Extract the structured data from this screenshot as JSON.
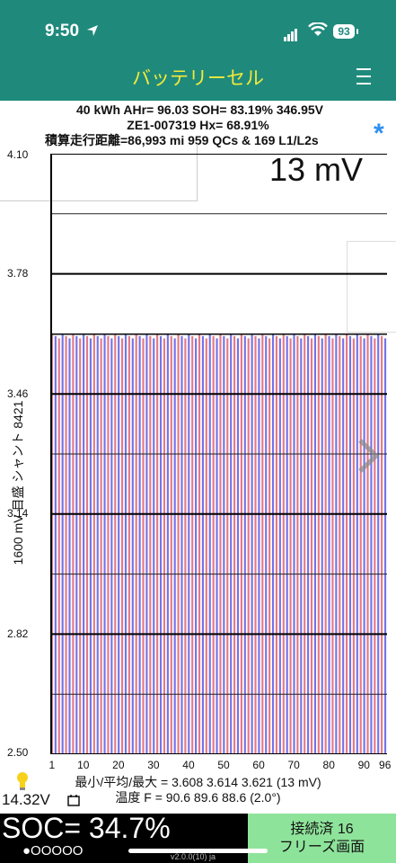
{
  "status_bar": {
    "time": "9:50",
    "battery_level": "93"
  },
  "header": {
    "title": "バッテリーセル"
  },
  "info": {
    "line1": "40 kWh  AHr= 96.03  SOH= 83.19%   346.95V",
    "line2": "ZE1-007319   Hx= 68.91%",
    "line3": "積算走行距離=86,993 mi 959 QCs & 169 L1/L2s"
  },
  "delta_readout": "13 mV",
  "chart_data": {
    "type": "bar",
    "ylabel": "1600 mV 目盛   シャント 8421",
    "ylim": [
      2.5,
      4.1
    ],
    "yticks": [
      "4.10",
      "3.78",
      "3.46",
      "3.14",
      "2.82",
      "2.50"
    ],
    "xticks": [
      "1",
      "10",
      "20",
      "30",
      "40",
      "50",
      "60",
      "70",
      "80",
      "90",
      "96"
    ],
    "cell_count": 96,
    "min_v": 3.608,
    "avg_v": 3.614,
    "max_v": 3.621,
    "even_color": "#e06070",
    "odd_color": "#5a5ae6"
  },
  "stats": {
    "voltage_line": "最小/平均/最大 = 3.608 3.614 3.621  (13 mV)",
    "temp_line": "温度 F = 90.6  89.6  88.6  (2.0°)"
  },
  "aux_battery": "14.32V",
  "soc": "SOC= 34.7%",
  "soc_dots": "●OOOOO",
  "version": "v2.0.0(10) ja",
  "connection": {
    "line1": "接続済 16",
    "line2": "フリーズ画面"
  },
  "colors": {
    "header_bg": "#1f8a7c",
    "title_color": "#f3ea3a",
    "connect_bg": "#8ee39a",
    "bluetooth": "#2d8ff0"
  }
}
